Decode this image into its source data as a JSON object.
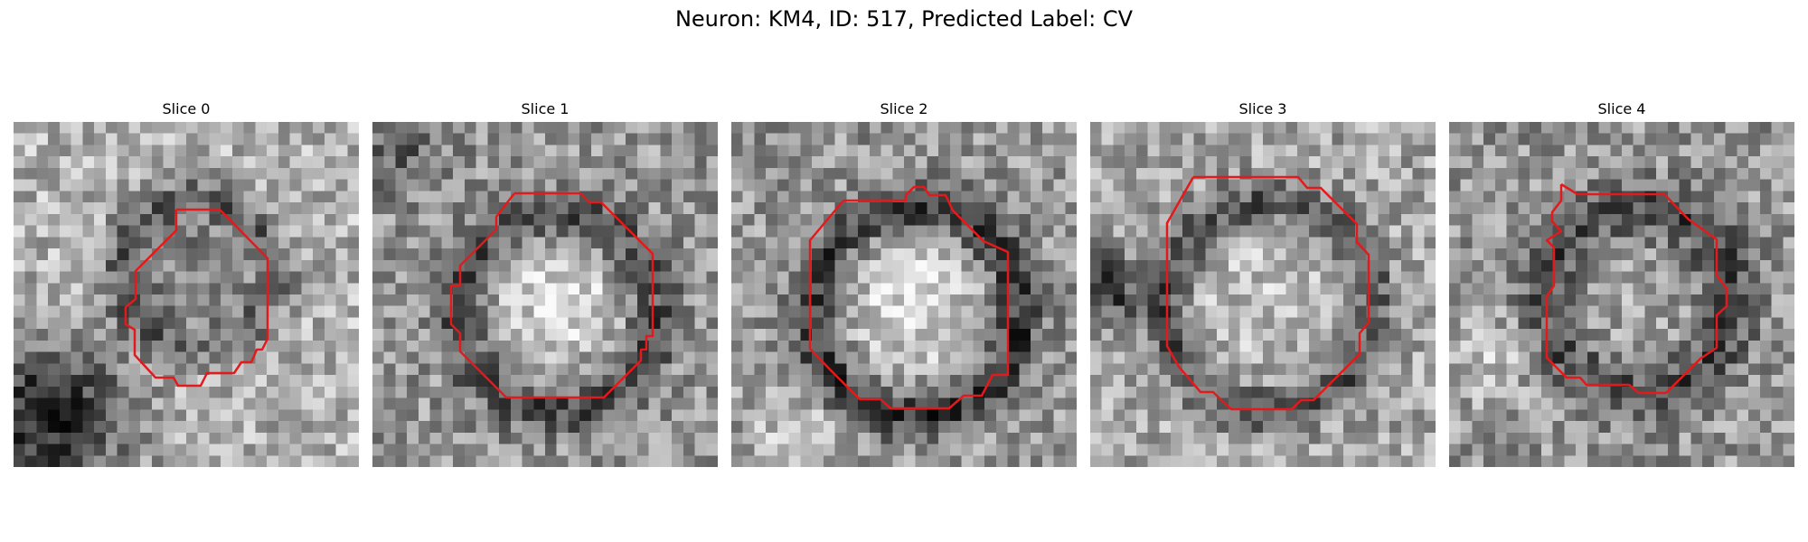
{
  "title": "Neuron: KM4, ID: 517, Predicted Label: CV",
  "contour_color": "#e31a1c",
  "panels": [
    {
      "label": "Slice 0",
      "icon": "grayscale-neuron-patch-with-red-contour"
    },
    {
      "label": "Slice 1",
      "icon": "grayscale-neuron-patch-with-red-contour"
    },
    {
      "label": "Slice 2",
      "icon": "grayscale-neuron-patch-with-red-contour"
    },
    {
      "label": "Slice 3",
      "icon": "grayscale-neuron-patch-with-red-contour"
    },
    {
      "label": "Slice 4",
      "icon": "grayscale-neuron-patch-with-red-contour"
    }
  ]
}
